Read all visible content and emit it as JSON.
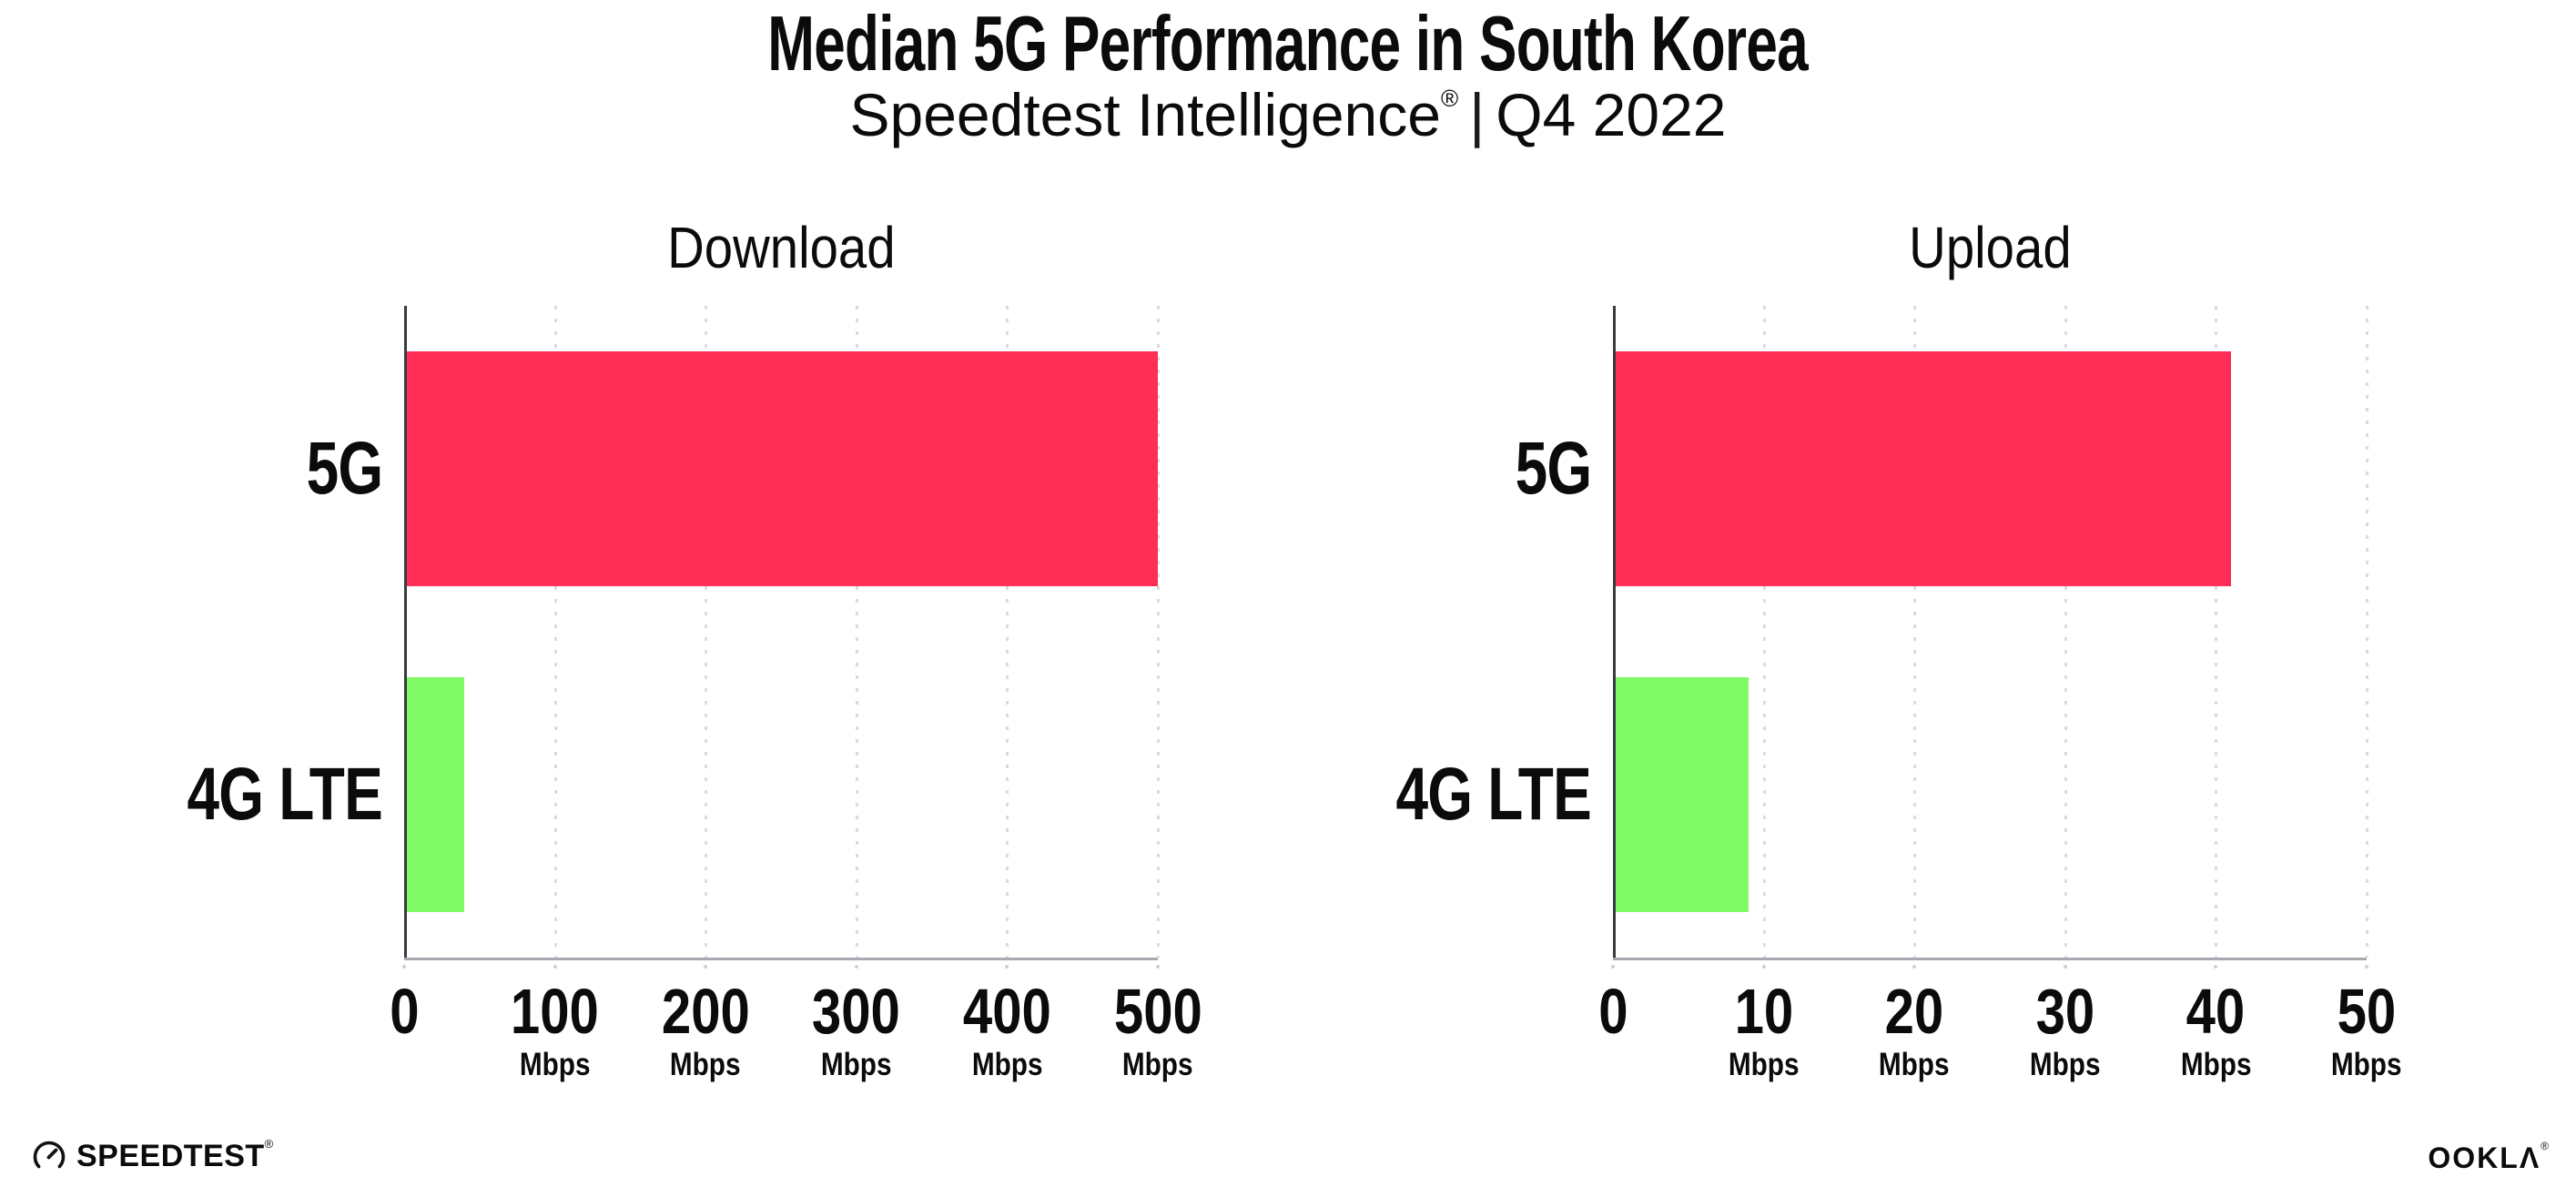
{
  "header": {
    "title": "Median 5G Performance in South Korea",
    "subtitle_brand": "Speedtest Intelligence",
    "subtitle_reg": "®",
    "subtitle_divider": "|",
    "subtitle_period": "Q4 2022"
  },
  "chart_data": [
    {
      "type": "bar",
      "orientation": "horizontal",
      "title": "Download",
      "categories": [
        "5G",
        "4G LTE"
      ],
      "values": [
        500,
        40
      ],
      "value_unit": "Mbps",
      "xlim": [
        0,
        500
      ],
      "xticks": [
        0,
        100,
        200,
        300,
        400,
        500
      ],
      "tick_unit": "Mbps",
      "tick_unit_on_zero": false,
      "bar_colors": [
        "#fe2e56",
        "#7efb67"
      ],
      "grid": "dotted-vertical",
      "legend": "none"
    },
    {
      "type": "bar",
      "orientation": "horizontal",
      "title": "Upload",
      "categories": [
        "5G",
        "4G LTE"
      ],
      "values": [
        41,
        9
      ],
      "value_unit": "Mbps",
      "xlim": [
        0,
        50
      ],
      "xticks": [
        0,
        10,
        20,
        30,
        40,
        50
      ],
      "tick_unit": "Mbps",
      "tick_unit_on_zero": false,
      "bar_colors": [
        "#fe2e56",
        "#7efb67"
      ],
      "grid": "dotted-vertical",
      "legend": "none"
    }
  ],
  "footer": {
    "speedtest_text": "SPEEDTEST",
    "speedtest_mark": "®",
    "ookla_text": "OOKLΛ",
    "ookla_mark": "®"
  },
  "colors": {
    "bar_5g": "#fe2e56",
    "bar_4g_lte": "#7efb67",
    "y_axis": "#3a3a42",
    "x_axis": "#a8a8ae",
    "gridline_dot": "#dadae3",
    "text": "#0b0b0c",
    "background": "#ffffff"
  }
}
